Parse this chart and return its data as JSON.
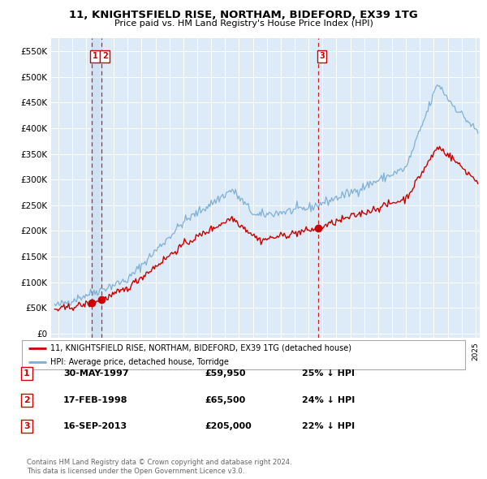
{
  "title": "11, KNIGHTSFIELD RISE, NORTHAM, BIDEFORD, EX39 1TG",
  "subtitle": "Price paid vs. HM Land Registry's House Price Index (HPI)",
  "legend_line1": "11, KNIGHTSFIELD RISE, NORTHAM, BIDEFORD, EX39 1TG (detached house)",
  "legend_line2": "HPI: Average price, detached house, Torridge",
  "footer_line1": "Contains HM Land Registry data © Crown copyright and database right 2024.",
  "footer_line2": "This data is licensed under the Open Government Licence v3.0.",
  "sale_color": "#cc0000",
  "hpi_color": "#7aadd4",
  "background_color": "#ddeaf7",
  "transactions": [
    {
      "num": 1,
      "date": "30-MAY-1997",
      "price": "£59,950",
      "pct": "25% ↓ HPI",
      "year": 1997.41,
      "value": 59950
    },
    {
      "num": 2,
      "date": "17-FEB-1998",
      "price": "£65,500",
      "pct": "24% ↓ HPI",
      "year": 1998.12,
      "value": 65500
    },
    {
      "num": 3,
      "date": "16-SEP-2013",
      "price": "£205,000",
      "pct": "22% ↓ HPI",
      "year": 2013.71,
      "value": 205000
    }
  ],
  "yticks": [
    0,
    50000,
    100000,
    150000,
    200000,
    250000,
    300000,
    350000,
    400000,
    450000,
    500000,
    550000
  ],
  "ylim": [
    -8000,
    575000
  ],
  "xlim_start": 1994.5,
  "xlim_end": 2025.3
}
